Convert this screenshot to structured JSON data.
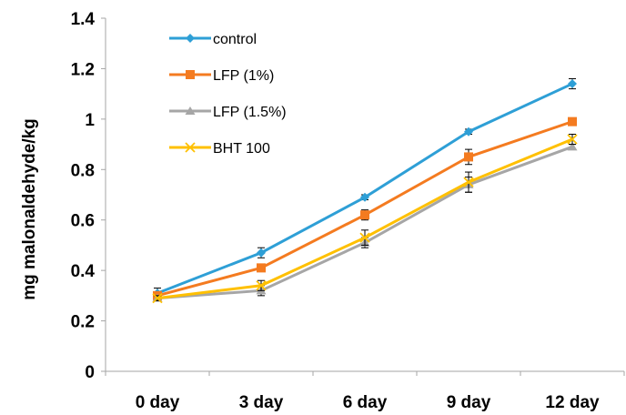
{
  "chart_data": {
    "type": "line",
    "title": "",
    "xlabel": "",
    "ylabel": "mg malonaldehyde/kg",
    "categories": [
      "0 day",
      "3 day",
      "6 day",
      "9 day",
      "12 day"
    ],
    "ylim": [
      0,
      1.4
    ],
    "yticks": [
      "0",
      "0.2",
      "0.4",
      "0.6",
      "0.8",
      "1",
      "1.2",
      "1.4"
    ],
    "ytick_values": [
      0,
      0.2,
      0.4,
      0.6,
      0.8,
      1.0,
      1.2,
      1.4
    ],
    "grid": false,
    "legend_position": "top-left",
    "series": [
      {
        "name": "control",
        "values": [
          0.31,
          0.47,
          0.69,
          0.95,
          1.14
        ],
        "errors": [
          0.02,
          0.02,
          0.01,
          0.01,
          0.02
        ],
        "color": "#2e9fd6",
        "marker": "diamond"
      },
      {
        "name": "LFP (1%)",
        "values": [
          0.3,
          0.41,
          0.62,
          0.85,
          0.99
        ],
        "errors": [
          0.01,
          0.01,
          0.02,
          0.03,
          0.01
        ],
        "color": "#f47b20",
        "marker": "square"
      },
      {
        "name": "LFP (1.5%)",
        "values": [
          0.29,
          0.32,
          0.51,
          0.74,
          0.89
        ],
        "errors": [
          0.01,
          0.02,
          0.02,
          0.03,
          0.01
        ],
        "color": "#a6a6a6",
        "marker": "triangle"
      },
      {
        "name": "BHT 100",
        "values": [
          0.29,
          0.34,
          0.53,
          0.75,
          0.92
        ],
        "errors": [
          0.01,
          0.02,
          0.03,
          0.04,
          0.02
        ],
        "color": "#ffc000",
        "marker": "x"
      }
    ]
  }
}
